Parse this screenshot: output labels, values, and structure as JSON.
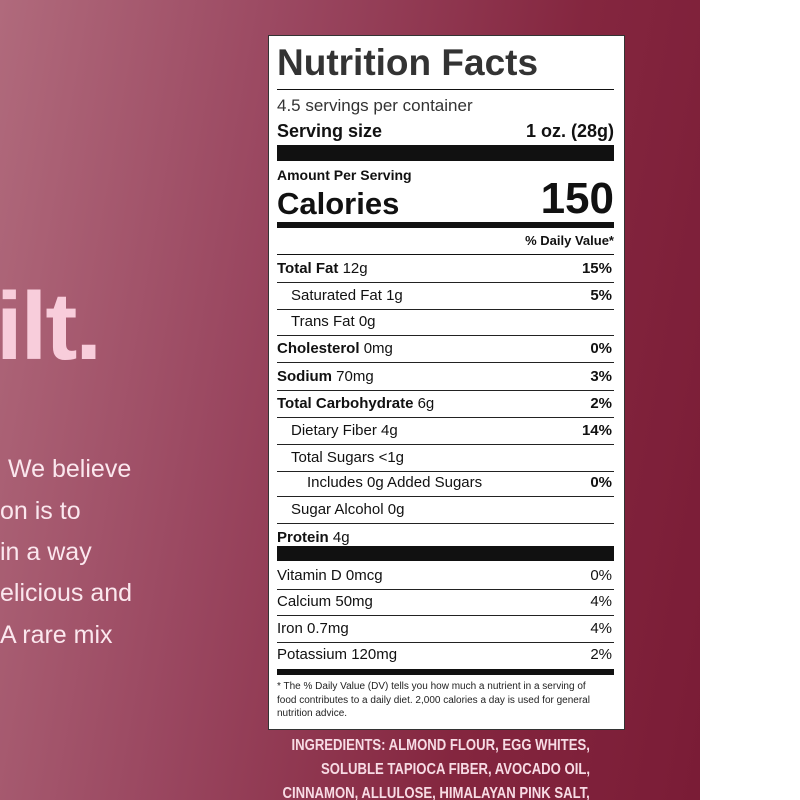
{
  "package": {
    "logo_fragment": "ilt.",
    "copy_lines": [
      "We believe",
      "on is to",
      "in a way",
      "elicious and",
      "A rare mix"
    ]
  },
  "label": {
    "title": "Nutrition Facts",
    "servings": "4.5 servings per container",
    "serving_size_label": "Serving size",
    "serving_size_value": "1 oz. (28g)",
    "amount_per_serving": "Amount Per Serving",
    "calories_label": "Calories",
    "calories_value": "150",
    "daily_value_header": "% Daily Value*",
    "rows": [
      {
        "name": "Total Fat",
        "amount": "12g",
        "dv": "15%"
      },
      {
        "name": "Saturated Fat",
        "amount": "1g",
        "dv": "5%"
      },
      {
        "name": "Trans Fat",
        "amount": "0g"
      },
      {
        "name": "Cholesterol",
        "amount": "0mg",
        "dv": "0%"
      },
      {
        "name": "Sodium",
        "amount": "70mg",
        "dv": "3%"
      },
      {
        "name": "Total Carbohydrate",
        "amount": "6g",
        "dv": "2%"
      },
      {
        "name": "Dietary Fiber",
        "amount": "4g",
        "dv": "14%"
      },
      {
        "name": "Total Sugars",
        "amount": "<1g"
      },
      {
        "name": "Includes 0g Added Sugars",
        "dv": "0%"
      },
      {
        "name": "Sugar Alcohol",
        "amount": "0g"
      },
      {
        "name": "Protein",
        "amount": "4g"
      }
    ],
    "vitamins": [
      {
        "name": "Vitamin D",
        "amount": "0mcg",
        "dv": "0%"
      },
      {
        "name": "Calcium",
        "amount": "50mg",
        "dv": "4%"
      },
      {
        "name": "Iron",
        "amount": "0.7mg",
        "dv": "4%"
      },
      {
        "name": "Potassium",
        "amount": "120mg",
        "dv": "2%"
      }
    ],
    "footnote": "* The % Daily Value (DV) tells you how much a nutrient in a serving of food contributes to a daily diet. 2,000 calories a day is used for general nutrition advice."
  },
  "ingredients": [
    "INGREDIENTS: ALMOND FLOUR, EGG WHITES,",
    "SOLUBLE TAPIOCA FIBER, AVOCADO OIL,",
    "CINNAMON, ALLULOSE, HIMALAYAN PINK SALT,"
  ]
}
